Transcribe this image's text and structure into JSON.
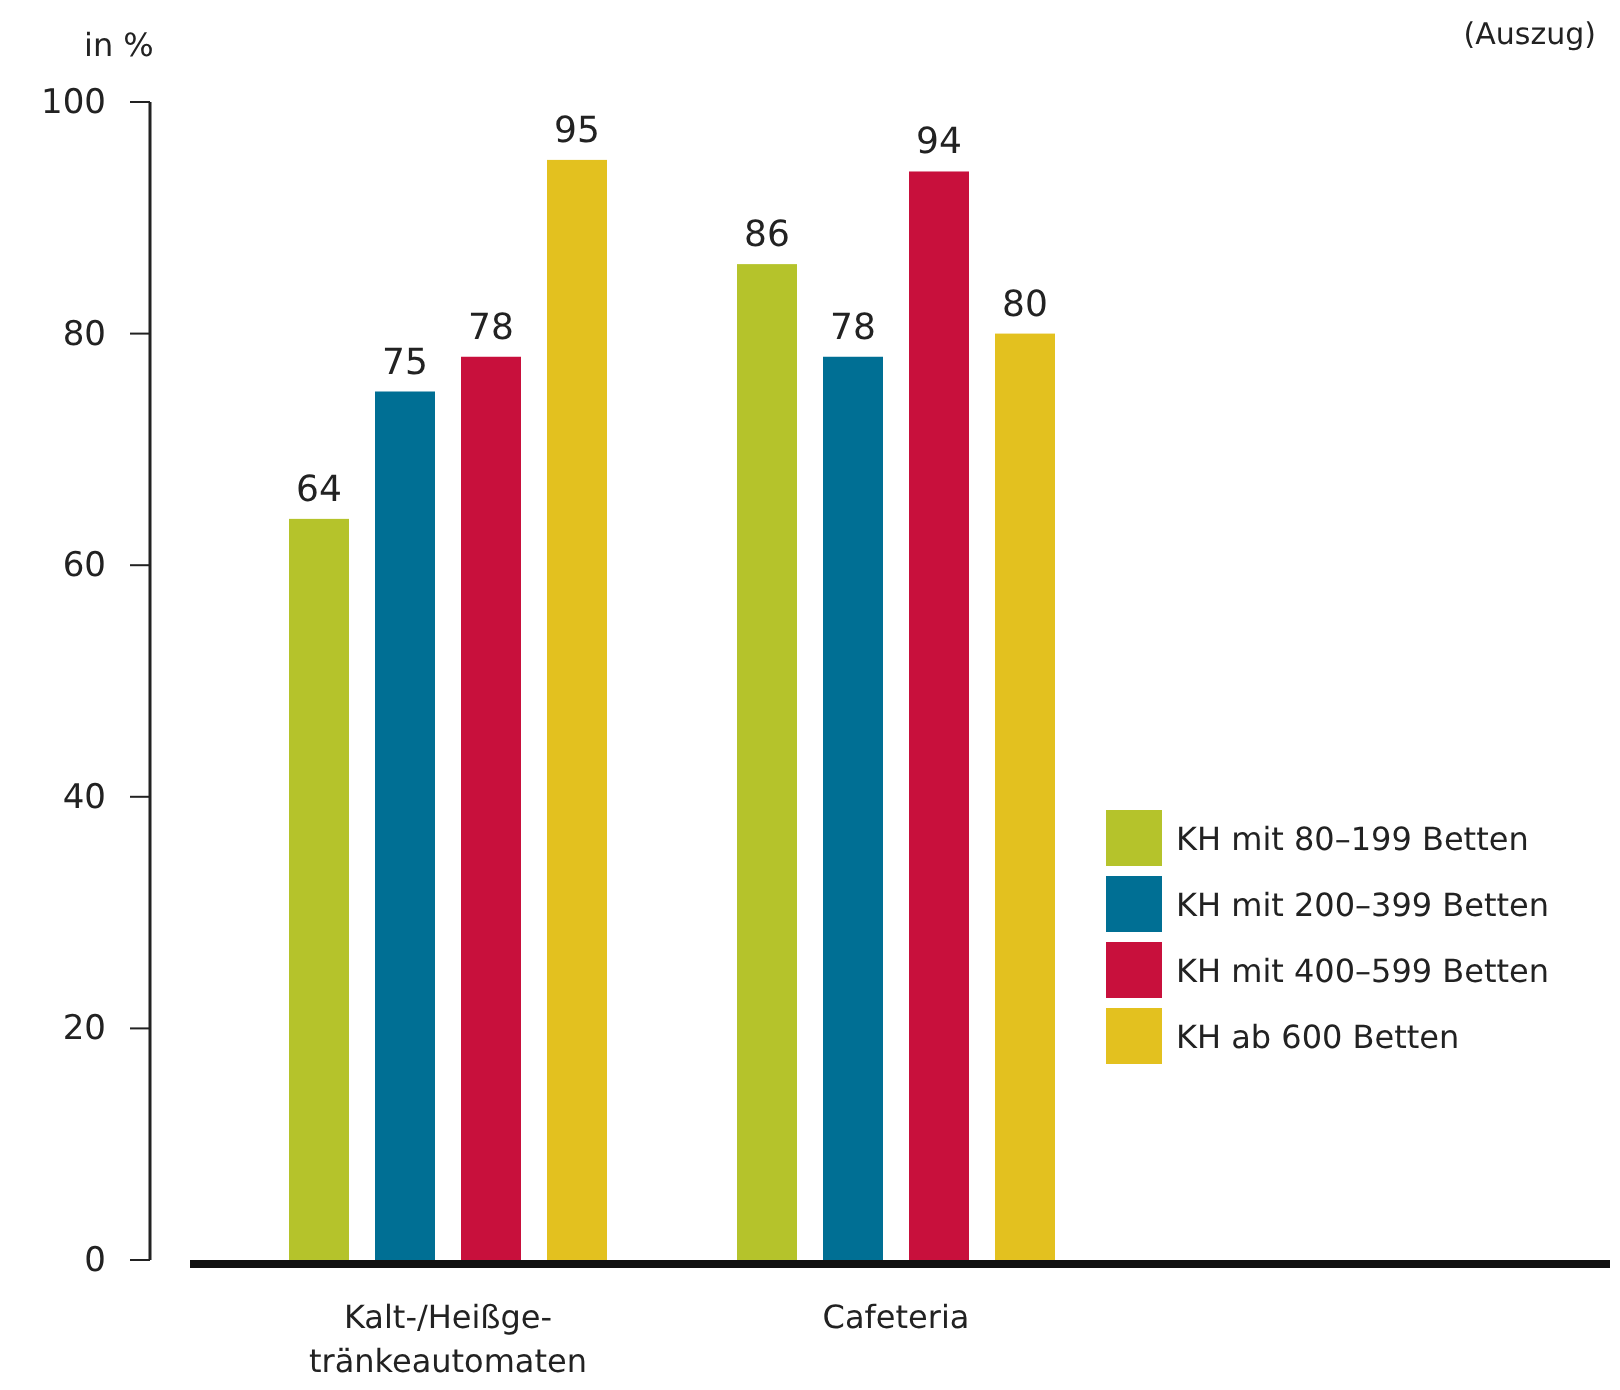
{
  "chart_data": {
    "type": "bar",
    "ylabel": "in %",
    "annotations": [
      "(Auszug)"
    ],
    "categories": [
      "Kalt-/Heißge-\ntränkeautomaten",
      "Cafeteria"
    ],
    "series": [
      {
        "name": "KH mit 80–199 Betten",
        "color": "#b5c32b",
        "values": [
          64,
          86
        ]
      },
      {
        "name": "KH mit 200–399 Betten",
        "color": "#006f94",
        "values": [
          75,
          78
        ]
      },
      {
        "name": "KH mit 400–599 Betten",
        "color": "#c8103c",
        "values": [
          78,
          94
        ]
      },
      {
        "name": "KH ab 600 Betten",
        "color": "#e3c11f",
        "values": [
          95,
          80
        ]
      }
    ],
    "ylim": [
      0,
      100
    ],
    "yticks": [
      0,
      20,
      40,
      60,
      80,
      100
    ],
    "data_labels": true,
    "grid": false,
    "legend": "right"
  }
}
